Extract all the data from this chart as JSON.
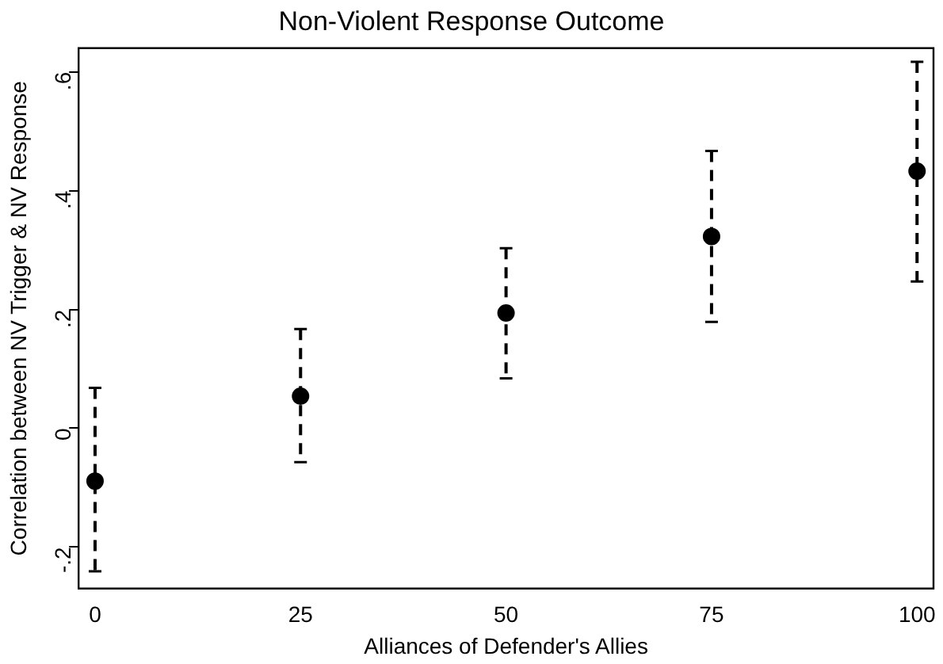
{
  "chart_data": {
    "type": "scatter",
    "title": "Non-Violent Response Outcome",
    "xlabel": "Alliances of Defender's Allies",
    "ylabel": "Correlation between NV Trigger & NV Response",
    "x": [
      0,
      25,
      50,
      75,
      100
    ],
    "series": [
      {
        "color": "#000000",
        "values": [
          -0.089,
          0.054,
          0.194,
          0.323,
          0.433
        ],
        "errors": [
          [
            -0.241,
            0.068
          ],
          [
            -0.057,
            0.167
          ],
          [
            0.084,
            0.303
          ],
          [
            0.179,
            0.467
          ],
          [
            0.247,
            0.617
          ]
        ]
      }
    ],
    "xlim": [
      -2,
      102
    ],
    "ylim": [
      -0.27,
      0.64
    ],
    "xticks": [
      0,
      25,
      50,
      75,
      100
    ],
    "yticks": [
      {
        "value": -0.2,
        "label": "-.2"
      },
      {
        "value": 0,
        "label": "0"
      },
      {
        "value": 0.2,
        "label": ".2"
      },
      {
        "value": 0.4,
        "label": ".4"
      },
      {
        "value": 0.6,
        "label": ".6"
      }
    ],
    "grid": false,
    "legend": false,
    "marker": "circle",
    "line_style": "dashed"
  }
}
